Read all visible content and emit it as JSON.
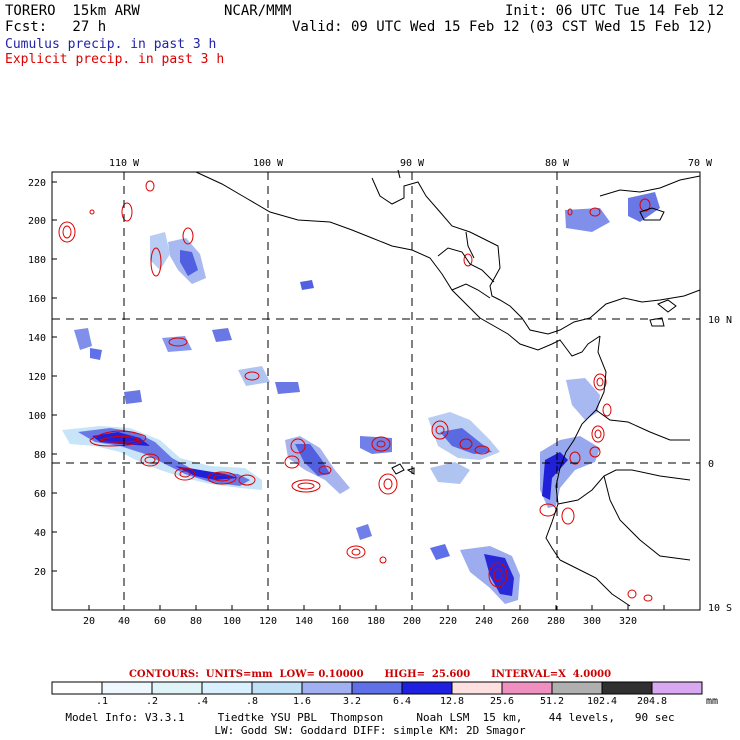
{
  "header": {
    "model": "TORERO  15km ARW",
    "org": "NCAR/MMM",
    "init": "Init: 06 UTC Tue 14 Feb 12",
    "fcst": "Fcst:   27 h",
    "valid": "Valid: 09 UTC Wed 15 Feb 12 (03 CST Wed 15 Feb 12)"
  },
  "legend": {
    "cumulus": "Cumulus precip. in past 3 h",
    "explicit": "Explicit precip. in past 3 h",
    "cumulus_color": "#2222aa",
    "explicit_color": "#dd0000"
  },
  "map": {
    "top_lon_labels": [
      "110 W",
      "100 W",
      "90 W",
      "80 W",
      "70 W"
    ],
    "right_lat_labels": [
      "10 N",
      "0",
      "10 S"
    ],
    "left_grid_labels": [
      "220",
      "200",
      "180",
      "160",
      "140",
      "120",
      "100",
      "80",
      "60",
      "40",
      "20"
    ],
    "bottom_grid_labels": [
      "20",
      "40",
      "60",
      "80",
      "100",
      "120",
      "140",
      "160",
      "180",
      "200",
      "220",
      "240",
      "260",
      "280",
      "300",
      "320"
    ],
    "ocean_color": "#ffffff",
    "coast_color": "#000000"
  },
  "contours_line": "CONTOURS:  UNITS=mm  LOW= 0.10000      HIGH=  25.600      INTERVAL=X  4.0000",
  "colorbar": {
    "labels": [
      ".1",
      ".2",
      ".4",
      ".8",
      "1.6",
      "3.2",
      "6.4",
      "12.8",
      "25.6",
      "51.2",
      "102.4",
      "204.8"
    ],
    "unit": "mm",
    "colors": [
      "#ffffff",
      "#f0f8ff",
      "#e0f4f8",
      "#d8f0ff",
      "#c0e0f8",
      "#a0b0f0",
      "#6070e8",
      "#2020e0",
      "#ffe0e0",
      "#f090c0",
      "#b0b0b0",
      "#303030",
      "#d8a8f0"
    ]
  },
  "footer": {
    "line1": "Model Info: V3.3.1     Tiedtke YSU PBL  Thompson     Noah LSM  15 km,    44 levels,   90 sec",
    "line2": "LW: Godd SW: Goddard DIFF: simple KM: 2D Smagor"
  }
}
